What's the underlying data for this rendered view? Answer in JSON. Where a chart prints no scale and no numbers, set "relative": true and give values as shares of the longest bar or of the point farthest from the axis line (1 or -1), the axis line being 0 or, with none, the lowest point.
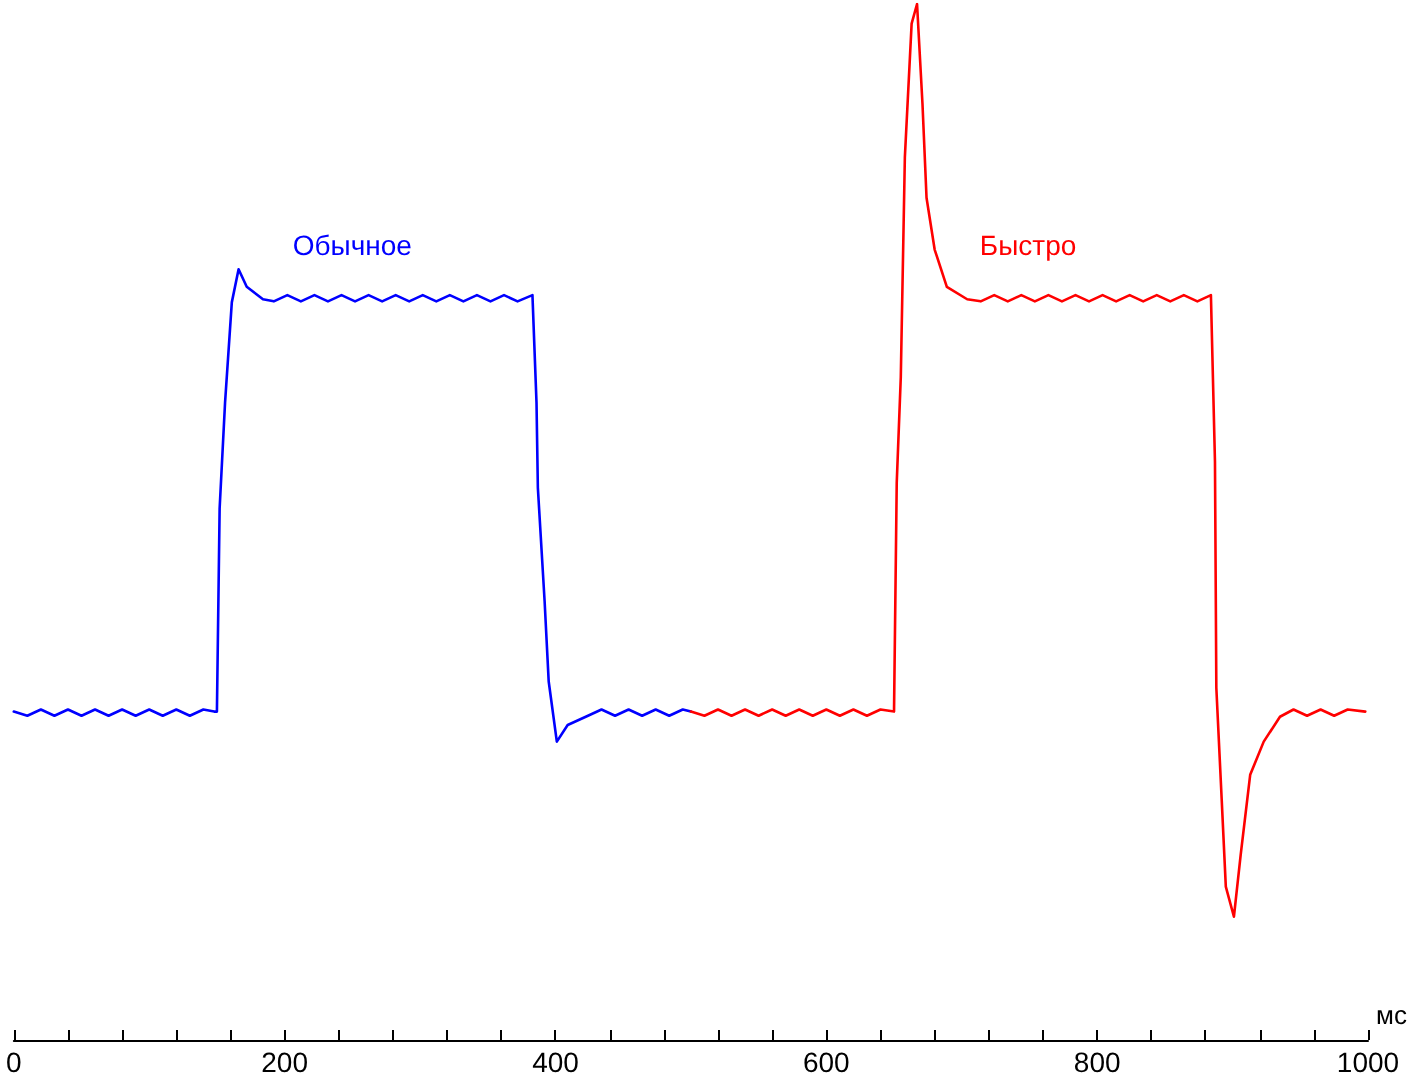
{
  "chart_data": {
    "type": "line",
    "relative": true,
    "xlabel": "мс",
    "xlim": [
      0,
      1000
    ],
    "xticks": [
      0,
      {
        "value": 40,
        "label": null
      },
      {
        "value": 80,
        "label": null
      },
      {
        "value": 120,
        "label": null
      },
      {
        "value": 160,
        "label": null
      },
      200,
      {
        "value": 240,
        "label": null
      },
      {
        "value": 280,
        "label": null
      },
      {
        "value": 320,
        "label": null
      },
      {
        "value": 360,
        "label": null
      },
      400,
      {
        "value": 440,
        "label": null
      },
      {
        "value": 480,
        "label": null
      },
      {
        "value": 520,
        "label": null
      },
      {
        "value": 560,
        "label": null
      },
      600,
      {
        "value": 640,
        "label": null
      },
      {
        "value": 680,
        "label": null
      },
      {
        "value": 720,
        "label": null
      },
      {
        "value": 760,
        "label": null
      },
      800,
      {
        "value": 840,
        "label": null
      },
      {
        "value": 880,
        "label": null
      },
      {
        "value": 920,
        "label": null
      },
      {
        "value": 960,
        "label": null
      },
      1000
    ],
    "series": [
      {
        "name": "Обычное",
        "color": "#0000ff",
        "x": [
          0,
          10,
          20,
          30,
          40,
          50,
          60,
          70,
          80,
          90,
          100,
          110,
          120,
          130,
          140,
          148,
          150,
          152,
          156,
          161,
          166,
          172,
          184,
          192,
          202,
          212,
          222,
          232,
          242,
          252,
          262,
          272,
          282,
          292,
          302,
          312,
          322,
          332,
          342,
          352,
          362,
          372,
          383,
          386,
          387,
          392,
          395,
          401,
          409,
          424,
          434,
          444,
          454,
          464,
          474,
          484,
          494,
          500
        ],
        "values": [
          0.317,
          0.313,
          0.319,
          0.313,
          0.319,
          0.313,
          0.319,
          0.313,
          0.319,
          0.313,
          0.319,
          0.313,
          0.319,
          0.313,
          0.319,
          0.317,
          0.317,
          0.513,
          0.615,
          0.712,
          0.744,
          0.727,
          0.715,
          0.713,
          0.719,
          0.713,
          0.719,
          0.713,
          0.719,
          0.713,
          0.719,
          0.713,
          0.719,
          0.713,
          0.719,
          0.713,
          0.719,
          0.713,
          0.719,
          0.713,
          0.719,
          0.713,
          0.719,
          0.615,
          0.533,
          0.423,
          0.346,
          0.288,
          0.304,
          0.313,
          0.319,
          0.313,
          0.319,
          0.313,
          0.319,
          0.313,
          0.319,
          0.317
        ]
      },
      {
        "name": "Быстро",
        "color": "#ff0000",
        "x": [
          500,
          510,
          520,
          530,
          540,
          550,
          560,
          570,
          580,
          590,
          600,
          610,
          620,
          630,
          640,
          650,
          651,
          652,
          655,
          658,
          663,
          667,
          671,
          674,
          680,
          689,
          704,
          714,
          724,
          734,
          744,
          754,
          764,
          774,
          784,
          794,
          804,
          814,
          824,
          834,
          844,
          854,
          864,
          874,
          884,
          887,
          888,
          892,
          895,
          901,
          906,
          913,
          923,
          935,
          945,
          955,
          965,
          975,
          985,
          998
        ],
        "values": [
          0.317,
          0.313,
          0.319,
          0.313,
          0.319,
          0.313,
          0.319,
          0.313,
          0.319,
          0.313,
          0.319,
          0.313,
          0.319,
          0.313,
          0.319,
          0.317,
          0.317,
          0.538,
          0.64,
          0.852,
          0.981,
          1,
          0.904,
          0.813,
          0.763,
          0.727,
          0.715,
          0.713,
          0.719,
          0.713,
          0.719,
          0.713,
          0.719,
          0.713,
          0.719,
          0.713,
          0.719,
          0.713,
          0.719,
          0.713,
          0.719,
          0.713,
          0.719,
          0.713,
          0.719,
          0.558,
          0.34,
          0.231,
          0.148,
          0.119,
          0.179,
          0.256,
          0.288,
          0.312,
          0.319,
          0.313,
          0.319,
          0.313,
          0.319,
          0.317
        ]
      }
    ]
  }
}
